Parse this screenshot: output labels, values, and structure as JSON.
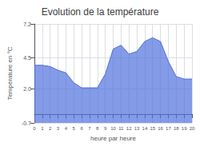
{
  "chart_data": {
    "type": "line",
    "title": "Evolution de la température",
    "xlabel": "heure par heure",
    "ylabel": "Température en °C",
    "x": [
      0,
      1,
      2,
      3,
      4,
      5,
      6,
      7,
      8,
      9,
      10,
      11,
      12,
      13,
      14,
      15,
      16,
      17,
      18,
      19,
      20
    ],
    "values": [
      3.9,
      3.9,
      3.8,
      3.5,
      3.3,
      2.5,
      2.1,
      2.1,
      2.1,
      3.2,
      5.2,
      5.5,
      4.8,
      5.0,
      5.8,
      6.1,
      5.8,
      4.2,
      3.0,
      2.8,
      2.8
    ],
    "xlim": [
      0,
      20
    ],
    "xticks": [
      0,
      1,
      2,
      3,
      4,
      5,
      6,
      7,
      8,
      9,
      10,
      11,
      12,
      13,
      14,
      15,
      16,
      17,
      18,
      19,
      20
    ],
    "ylim": [
      -0.7,
      7.2
    ],
    "yticks": [
      -0.7,
      {
        "value": 2.0,
        "label": "2.0"
      },
      4.5,
      7.2
    ],
    "grid": true
  }
}
